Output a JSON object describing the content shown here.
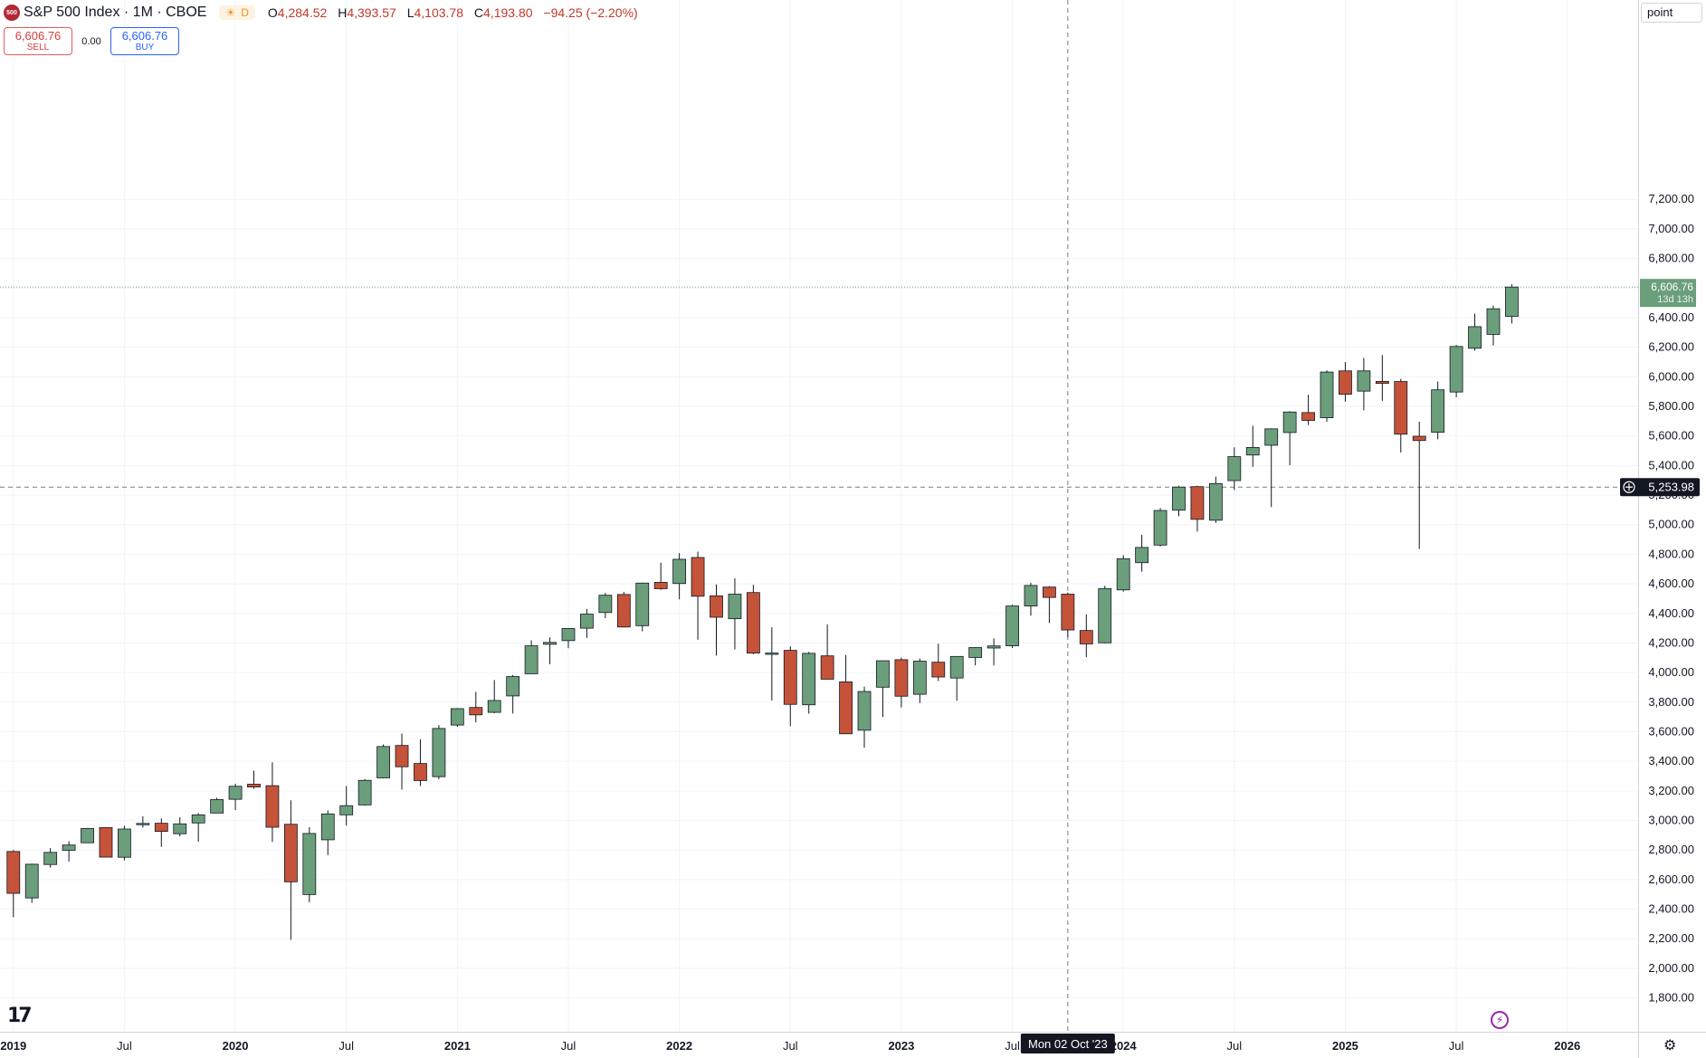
{
  "header": {
    "logo_text": "500",
    "title": "S&P 500 Index · 1M · CBOE",
    "badge": "D",
    "ohlc": {
      "o_label": "O",
      "o": "4,284.52",
      "h_label": "H",
      "h": "4,393.57",
      "l_label": "L",
      "l": "4,103.78",
      "c_label": "C",
      "c": "4,193.80",
      "change": "−94.25 (−2.20%)"
    }
  },
  "trade": {
    "sell_price": "6,606.76",
    "sell_label": "SELL",
    "spread": "0.00",
    "buy_price": "6,606.76",
    "buy_label": "BUY"
  },
  "unit_label": "point",
  "colors": {
    "up": "#6b9e7b",
    "down": "#c5533a",
    "crosshair_label_bg": "#131722",
    "last_price_bg": "#6b9e7b"
  },
  "crosshair": {
    "price": 5253.98,
    "price_label": "5,253.98",
    "date_index": 57,
    "date_label": "Mon 02 Oct '23"
  },
  "last_price": {
    "value": 6606.76,
    "label": "6,606.76",
    "countdown": "13d 13h"
  },
  "chart_data": {
    "type": "candlestick",
    "title": "S&P 500 Index · 1M · CBOE",
    "ylim": [
      1640,
      7300
    ],
    "y_ticks": [
      1800,
      2000,
      2200,
      2400,
      2600,
      2800,
      3000,
      3200,
      3400,
      3600,
      3800,
      4000,
      4200,
      4400,
      4600,
      4800,
      5000,
      5200,
      5400,
      5600,
      5800,
      6000,
      6200,
      6400,
      6600,
      6800,
      7000,
      7200
    ],
    "x_ticks": [
      {
        "label": "2019",
        "index": 0,
        "bold": true
      },
      {
        "label": "Jul",
        "index": 6
      },
      {
        "label": "2020",
        "index": 12,
        "bold": true
      },
      {
        "label": "Jul",
        "index": 18
      },
      {
        "label": "2021",
        "index": 24,
        "bold": true
      },
      {
        "label": "Jul",
        "index": 30
      },
      {
        "label": "2022",
        "index": 36,
        "bold": true
      },
      {
        "label": "Jul",
        "index": 42
      },
      {
        "label": "2023",
        "index": 48,
        "bold": true
      },
      {
        "label": "Jul",
        "index": 54
      },
      {
        "label": "2024",
        "index": 60,
        "bold": true
      },
      {
        "label": "Jul",
        "index": 66
      },
      {
        "label": "2025",
        "index": 72,
        "bold": true
      },
      {
        "label": "Jul",
        "index": 78
      },
      {
        "label": "2026",
        "index": 84,
        "bold": true
      }
    ],
    "candles": [
      {
        "month": "2018-12",
        "o": 2790,
        "h": 2800,
        "l": 2346,
        "c": 2507
      },
      {
        "month": "2019-01",
        "o": 2476,
        "h": 2708,
        "l": 2443,
        "c": 2704
      },
      {
        "month": "2019-02",
        "o": 2702,
        "h": 2813,
        "l": 2681,
        "c": 2784
      },
      {
        "month": "2019-03",
        "o": 2798,
        "h": 2860,
        "l": 2722,
        "c": 2834
      },
      {
        "month": "2019-04",
        "o": 2849,
        "h": 2949,
        "l": 2848,
        "c": 2946
      },
      {
        "month": "2019-05",
        "o": 2952,
        "h": 2954,
        "l": 2751,
        "c": 2752
      },
      {
        "month": "2019-06",
        "o": 2751,
        "h": 2964,
        "l": 2729,
        "c": 2942
      },
      {
        "month": "2019-07",
        "o": 2971,
        "h": 3028,
        "l": 2952,
        "c": 2980
      },
      {
        "month": "2019-08",
        "o": 2981,
        "h": 3014,
        "l": 2822,
        "c": 2926
      },
      {
        "month": "2019-09",
        "o": 2910,
        "h": 3022,
        "l": 2892,
        "c": 2977
      },
      {
        "month": "2019-10",
        "o": 2983,
        "h": 3050,
        "l": 2856,
        "c": 3038
      },
      {
        "month": "2019-11",
        "o": 3050,
        "h": 3154,
        "l": 3050,
        "c": 3141
      },
      {
        "month": "2019-12",
        "o": 3143,
        "h": 3248,
        "l": 3070,
        "c": 3231
      },
      {
        "month": "2020-01",
        "o": 3245,
        "h": 3337,
        "l": 3214,
        "c": 3226
      },
      {
        "month": "2020-02",
        "o": 3235,
        "h": 3393,
        "l": 2855,
        "c": 2954
      },
      {
        "month": "2020-03",
        "o": 2974,
        "h": 3136,
        "l": 2192,
        "c": 2585
      },
      {
        "month": "2020-04",
        "o": 2499,
        "h": 2954,
        "l": 2447,
        "c": 2912
      },
      {
        "month": "2020-05",
        "o": 2869,
        "h": 3068,
        "l": 2766,
        "c": 3044
      },
      {
        "month": "2020-06",
        "o": 3038,
        "h": 3233,
        "l": 2965,
        "c": 3100
      },
      {
        "month": "2020-07",
        "o": 3105,
        "h": 3280,
        "l": 3101,
        "c": 3271
      },
      {
        "month": "2020-08",
        "o": 3288,
        "h": 3514,
        "l": 3284,
        "c": 3500
      },
      {
        "month": "2020-09",
        "o": 3507,
        "h": 3588,
        "l": 3209,
        "c": 3363
      },
      {
        "month": "2020-10",
        "o": 3385,
        "h": 3549,
        "l": 3233,
        "c": 3270
      },
      {
        "month": "2020-11",
        "o": 3296,
        "h": 3645,
        "l": 3279,
        "c": 3622
      },
      {
        "month": "2020-12",
        "o": 3645,
        "h": 3760,
        "l": 3633,
        "c": 3756
      },
      {
        "month": "2021-01",
        "o": 3764,
        "h": 3870,
        "l": 3663,
        "c": 3714
      },
      {
        "month": "2021-02",
        "o": 3731,
        "h": 3950,
        "l": 3725,
        "c": 3811
      },
      {
        "month": "2021-03",
        "o": 3842,
        "h": 3984,
        "l": 3723,
        "c": 3973
      },
      {
        "month": "2021-04",
        "o": 3992,
        "h": 4218,
        "l": 3992,
        "c": 4181
      },
      {
        "month": "2021-05",
        "o": 4191,
        "h": 4238,
        "l": 4057,
        "c": 4204
      },
      {
        "month": "2021-06",
        "o": 4216,
        "h": 4302,
        "l": 4165,
        "c": 4298
      },
      {
        "month": "2021-07",
        "o": 4300,
        "h": 4430,
        "l": 4234,
        "c": 4395
      },
      {
        "month": "2021-08",
        "o": 4406,
        "h": 4538,
        "l": 4367,
        "c": 4523
      },
      {
        "month": "2021-09",
        "o": 4528,
        "h": 4546,
        "l": 4305,
        "c": 4308
      },
      {
        "month": "2021-10",
        "o": 4317,
        "h": 4608,
        "l": 4279,
        "c": 4605
      },
      {
        "month": "2021-11",
        "o": 4610,
        "h": 4744,
        "l": 4560,
        "c": 4567
      },
      {
        "month": "2021-12",
        "o": 4602,
        "h": 4808,
        "l": 4495,
        "c": 4766
      },
      {
        "month": "2022-01",
        "o": 4778,
        "h": 4818,
        "l": 4222,
        "c": 4516
      },
      {
        "month": "2022-02",
        "o": 4519,
        "h": 4596,
        "l": 4115,
        "c": 4374
      },
      {
        "month": "2022-03",
        "o": 4364,
        "h": 4637,
        "l": 4157,
        "c": 4530
      },
      {
        "month": "2022-04",
        "o": 4541,
        "h": 4593,
        "l": 4124,
        "c": 4132
      },
      {
        "month": "2022-05",
        "o": 4131,
        "h": 4307,
        "l": 3811,
        "c": 4132
      },
      {
        "month": "2022-06",
        "o": 4150,
        "h": 4178,
        "l": 3637,
        "c": 3785
      },
      {
        "month": "2022-07",
        "o": 3782,
        "h": 4140,
        "l": 3722,
        "c": 4130
      },
      {
        "month": "2022-08",
        "o": 4113,
        "h": 4325,
        "l": 3955,
        "c": 3955
      },
      {
        "month": "2022-09",
        "o": 3937,
        "h": 4119,
        "l": 3584,
        "c": 3586
      },
      {
        "month": "2022-10",
        "o": 3610,
        "h": 3905,
        "l": 3492,
        "c": 3872
      },
      {
        "month": "2022-11",
        "o": 3901,
        "h": 4080,
        "l": 3699,
        "c": 4080
      },
      {
        "month": "2022-12",
        "o": 4087,
        "h": 4101,
        "l": 3764,
        "c": 3840
      },
      {
        "month": "2023-01",
        "o": 3853,
        "h": 4095,
        "l": 3794,
        "c": 4077
      },
      {
        "month": "2023-02",
        "o": 4070,
        "h": 4195,
        "l": 3943,
        "c": 3970
      },
      {
        "month": "2023-03",
        "o": 3963,
        "h": 4110,
        "l": 3809,
        "c": 4109
      },
      {
        "month": "2023-04",
        "o": 4102,
        "h": 4170,
        "l": 4049,
        "c": 4169
      },
      {
        "month": "2023-05",
        "o": 4166,
        "h": 4231,
        "l": 4048,
        "c": 4180
      },
      {
        "month": "2023-06",
        "o": 4181,
        "h": 4458,
        "l": 4166,
        "c": 4450
      },
      {
        "month": "2023-07",
        "o": 4450,
        "h": 4607,
        "l": 4385,
        "c": 4589
      },
      {
        "month": "2023-08",
        "o": 4578,
        "h": 4584,
        "l": 4335,
        "c": 4508
      },
      {
        "month": "2023-09",
        "o": 4530,
        "h": 4541,
        "l": 4238,
        "c": 4288
      },
      {
        "month": "2023-10",
        "o": 4284.52,
        "h": 4393.57,
        "l": 4103.78,
        "c": 4193.8
      },
      {
        "month": "2023-11",
        "o": 4201,
        "h": 4587,
        "l": 4197,
        "c": 4568
      },
      {
        "month": "2023-12",
        "o": 4559,
        "h": 4794,
        "l": 4547,
        "c": 4770
      },
      {
        "month": "2024-01",
        "o": 4743,
        "h": 4932,
        "l": 4682,
        "c": 4846
      },
      {
        "month": "2024-02",
        "o": 4862,
        "h": 5112,
        "l": 4853,
        "c": 5096
      },
      {
        "month": "2024-03",
        "o": 5098,
        "h": 5264,
        "l": 5057,
        "c": 5254
      },
      {
        "month": "2024-04",
        "o": 5257,
        "h": 5263,
        "l": 4953,
        "c": 5036
      },
      {
        "month": "2024-05",
        "o": 5030,
        "h": 5325,
        "l": 5012,
        "c": 5278
      },
      {
        "month": "2024-06",
        "o": 5298,
        "h": 5523,
        "l": 5234,
        "c": 5460
      },
      {
        "month": "2024-07",
        "o": 5471,
        "h": 5669,
        "l": 5391,
        "c": 5522
      },
      {
        "month": "2024-08",
        "o": 5537,
        "h": 5651,
        "l": 5119,
        "c": 5648
      },
      {
        "month": "2024-09",
        "o": 5623,
        "h": 5767,
        "l": 5402,
        "c": 5762
      },
      {
        "month": "2024-10",
        "o": 5758,
        "h": 5878,
        "l": 5674,
        "c": 5705
      },
      {
        "month": "2024-11",
        "o": 5723,
        "h": 6044,
        "l": 5696,
        "c": 6032
      },
      {
        "month": "2024-12",
        "o": 6040,
        "h": 6099,
        "l": 5832,
        "c": 5882
      },
      {
        "month": "2025-01",
        "o": 5903,
        "h": 6128,
        "l": 5773,
        "c": 6040
      },
      {
        "month": "2025-02",
        "o": 5969,
        "h": 6147,
        "l": 5837,
        "c": 5955
      },
      {
        "month": "2025-03",
        "o": 5968,
        "h": 5986,
        "l": 5488,
        "c": 5612
      },
      {
        "month": "2025-04",
        "o": 5598,
        "h": 5696,
        "l": 4835,
        "c": 5569
      },
      {
        "month": "2025-05",
        "o": 5625,
        "h": 5968,
        "l": 5578,
        "c": 5912
      },
      {
        "month": "2025-06",
        "o": 5897,
        "h": 6215,
        "l": 5861,
        "c": 6205
      },
      {
        "month": "2025-07",
        "o": 6193,
        "h": 6427,
        "l": 6177,
        "c": 6339
      },
      {
        "month": "2025-08",
        "o": 6287,
        "h": 6481,
        "l": 6212,
        "c": 6460
      },
      {
        "month": "2025-09",
        "o": 6409,
        "h": 6626,
        "l": 6360,
        "c": 6606.76
      }
    ]
  }
}
